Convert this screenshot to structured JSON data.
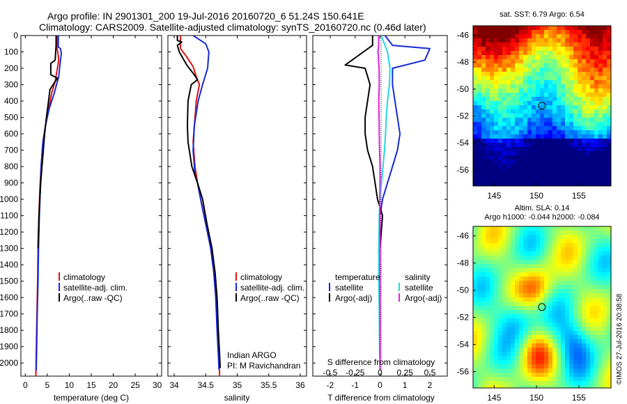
{
  "figure": {
    "title_line1": "Argo profile: IN 2901301_200 19-Jul-2016 20160720_6 51.24S 150.641E",
    "title_line2": "Climatology: CARS2009. Satellite-adjusted climatology: synTS_20160720.nc (0.46d later)",
    "side_stamp": "©IMOS 27-Jul-2016 20:38:58",
    "float_info_line1": "Indian ARGO",
    "float_info_line2": "PI: M Ravichandran"
  },
  "colors": {
    "climatology": "#e01010",
    "satellite": "#1428d8",
    "argo": "#000000",
    "salinity_satellite": "#20d8e0",
    "salinity_argo": "#e020e0"
  },
  "chart_data": [
    {
      "id": "temperature",
      "type": "line",
      "xlabel": "temperature (deg C)",
      "xlim": [
        -1,
        31
      ],
      "xticks": [
        0,
        5,
        10,
        15,
        20,
        25,
        30
      ],
      "xticklabels": [
        "0",
        "5",
        "10",
        "15",
        "20",
        "25",
        "30"
      ],
      "ylim": [
        2080,
        0
      ],
      "yticks": [
        0,
        100,
        200,
        300,
        400,
        500,
        600,
        700,
        800,
        900,
        1000,
        1100,
        1200,
        1300,
        1400,
        1500,
        1600,
        1700,
        1800,
        1900,
        2000
      ],
      "yticklabels": [
        "0",
        "100",
        "200",
        "300",
        "400",
        "500",
        "600",
        "700",
        "800",
        "900",
        "1000",
        "1100",
        "1200",
        "1300",
        "1400",
        "1500",
        "1600",
        "1700",
        "1800",
        "1900",
        "2000"
      ],
      "legend": [
        "climatology",
        "satellite-adj. clim.",
        "Argo(..raw -QC)"
      ],
      "series": [
        {
          "name": "climatology",
          "color_key": "climatology",
          "points": [
            [
              7.2,
              0
            ],
            [
              7.2,
              80
            ],
            [
              7.4,
              100
            ],
            [
              7.6,
              150
            ],
            [
              7.3,
              200
            ],
            [
              6.8,
              280
            ],
            [
              6.0,
              350
            ],
            [
              5.3,
              450
            ],
            [
              4.6,
              550
            ],
            [
              4.0,
              650
            ],
            [
              3.6,
              800
            ],
            [
              3.3,
              950
            ],
            [
              3.1,
              1100
            ],
            [
              2.9,
              1300
            ],
            [
              2.8,
              1500
            ],
            [
              2.65,
              1700
            ],
            [
              2.5,
              1900
            ],
            [
              2.4,
              2080
            ]
          ]
        },
        {
          "name": "satellite-adj. clim.",
          "color_key": "satellite",
          "points": [
            [
              7.5,
              0
            ],
            [
              7.5,
              70
            ],
            [
              8.0,
              80
            ],
            [
              8.2,
              110
            ],
            [
              8.0,
              150
            ],
            [
              7.6,
              250
            ],
            [
              6.6,
              350
            ],
            [
              5.4,
              450
            ],
            [
              4.6,
              550
            ],
            [
              4.0,
              650
            ],
            [
              3.6,
              800
            ],
            [
              3.4,
              950
            ],
            [
              3.2,
              1100
            ],
            [
              3.0,
              1300
            ],
            [
              2.9,
              1500
            ],
            [
              2.7,
              1700
            ],
            [
              2.6,
              1900
            ],
            [
              2.5,
              2030
            ],
            [
              2.5,
              2045
            ]
          ]
        },
        {
          "name": "Argo(..raw -QC)",
          "color_key": "argo",
          "points": [
            [
              7.0,
              0
            ],
            [
              7.0,
              60
            ],
            [
              6.8,
              150
            ],
            [
              5.8,
              170
            ],
            [
              5.8,
              240
            ],
            [
              7.3,
              260
            ],
            [
              5.6,
              330
            ],
            [
              5.2,
              420
            ],
            [
              4.8,
              500
            ],
            [
              4.4,
              600
            ],
            [
              4.1,
              700
            ],
            [
              3.8,
              800
            ],
            [
              3.5,
              900
            ],
            [
              3.3,
              1000
            ],
            [
              3.1,
              1100
            ],
            [
              2.9,
              1300
            ]
          ]
        }
      ]
    },
    {
      "id": "salinity",
      "type": "line",
      "xlabel": "salinity",
      "xlim": [
        33.9,
        36.1
      ],
      "xticks": [
        34,
        34.5,
        35,
        35.5,
        36
      ],
      "xticklabels": [
        "34",
        "34.5",
        "35",
        "35.5",
        "36"
      ],
      "ylim": [
        2080,
        0
      ],
      "yticks": [
        0,
        100,
        200,
        300,
        400,
        500,
        600,
        700,
        800,
        900,
        1000,
        1100,
        1200,
        1300,
        1400,
        1500,
        1600,
        1700,
        1800,
        1900,
        2000
      ],
      "legend": [
        "climatology",
        "satellite-adj. clim.",
        "Argo(..raw -QC)"
      ],
      "series": [
        {
          "name": "climatology",
          "color_key": "climatology",
          "points": [
            [
              34.1,
              0
            ],
            [
              34.1,
              80
            ],
            [
              34.18,
              120
            ],
            [
              34.3,
              190
            ],
            [
              34.35,
              250
            ],
            [
              34.4,
              300
            ],
            [
              34.35,
              400
            ],
            [
              34.32,
              550
            ],
            [
              34.3,
              650
            ],
            [
              34.33,
              800
            ],
            [
              34.37,
              900
            ],
            [
              34.42,
              1000
            ],
            [
              34.5,
              1150
            ],
            [
              34.58,
              1300
            ],
            [
              34.63,
              1450
            ],
            [
              34.66,
              1600
            ],
            [
              34.69,
              1800
            ],
            [
              34.71,
              1950
            ],
            [
              34.72,
              2080
            ]
          ]
        },
        {
          "name": "satellite-adj. clim.",
          "color_key": "satellite",
          "points": [
            [
              34.3,
              0
            ],
            [
              34.5,
              50
            ],
            [
              34.55,
              100
            ],
            [
              34.53,
              200
            ],
            [
              34.45,
              300
            ],
            [
              34.38,
              400
            ],
            [
              34.32,
              550
            ],
            [
              34.3,
              700
            ],
            [
              34.33,
              850
            ],
            [
              34.37,
              900
            ],
            [
              34.42,
              1000
            ],
            [
              34.5,
              1150
            ],
            [
              34.58,
              1300
            ],
            [
              34.63,
              1450
            ],
            [
              34.66,
              1600
            ],
            [
              34.68,
              1800
            ],
            [
              34.7,
              1950
            ],
            [
              34.71,
              2040
            ]
          ]
        },
        {
          "name": "Argo(..raw -QC)",
          "color_key": "argo",
          "points": [
            [
              34.05,
              0
            ],
            [
              34.05,
              30
            ],
            [
              34.12,
              40
            ],
            [
              34.05,
              60
            ],
            [
              34.08,
              100
            ],
            [
              34.2,
              180
            ],
            [
              34.3,
              230
            ],
            [
              34.37,
              270
            ],
            [
              34.27,
              300
            ],
            [
              34.22,
              400
            ],
            [
              34.21,
              550
            ],
            [
              34.22,
              650
            ],
            [
              34.28,
              800
            ],
            [
              34.37,
              900
            ],
            [
              34.45,
              1000
            ],
            [
              34.52,
              1150
            ],
            [
              34.6,
              1300
            ],
            [
              34.65,
              1450
            ],
            [
              34.68,
              1600
            ],
            [
              34.7,
              1800
            ],
            [
              34.72,
              1950
            ],
            [
              34.73,
              2030
            ]
          ]
        }
      ]
    },
    {
      "id": "difference",
      "type": "line",
      "xlabel": "T difference from climatology",
      "xlabel_top": "S difference from climatology",
      "xlim": [
        -2.7,
        2.7
      ],
      "xticks": [
        -2,
        -1,
        0,
        1,
        2
      ],
      "xticklabels": [
        "-2",
        "-1",
        "0",
        "1",
        "2"
      ],
      "sticks": [
        "-0.5",
        "-0.25",
        "0",
        "0.25",
        "0.5"
      ],
      "ylim": [
        2080,
        0
      ],
      "yticks": [
        0,
        100,
        200,
        300,
        400,
        500,
        600,
        700,
        800,
        900,
        1000,
        1100,
        1200,
        1300,
        1400,
        1500,
        1600,
        1700,
        1800,
        1900,
        2000
      ],
      "legend_left_title": "temperature",
      "legend_left": [
        "satellite",
        "Argo(-adj)"
      ],
      "legend_right_title": "salinity",
      "legend_right": [
        "satellite",
        "Argo(-adj)"
      ],
      "series": [
        {
          "name": "temperature satellite",
          "color_key": "satellite",
          "points": [
            [
              0.2,
              0
            ],
            [
              0.5,
              60
            ],
            [
              2.0,
              80
            ],
            [
              1.8,
              150
            ],
            [
              0.5,
              200
            ],
            [
              0.5,
              300
            ],
            [
              0.6,
              400
            ],
            [
              0.7,
              500
            ],
            [
              0.8,
              600
            ],
            [
              0.7,
              700
            ],
            [
              0.5,
              800
            ],
            [
              0.3,
              900
            ],
            [
              0.1,
              1000
            ],
            [
              0.0,
              1100
            ],
            [
              0.0,
              1300
            ],
            [
              0.0,
              1600
            ],
            [
              0.0,
              2040
            ]
          ]
        },
        {
          "name": "temperature Argo(-adj)",
          "color_key": "argo",
          "points": [
            [
              -0.3,
              0
            ],
            [
              -0.3,
              60
            ],
            [
              -1.4,
              180
            ],
            [
              -0.6,
              200
            ],
            [
              -0.4,
              300
            ],
            [
              -0.5,
              400
            ],
            [
              -0.6,
              500
            ],
            [
              -0.6,
              600
            ],
            [
              -0.5,
              700
            ],
            [
              -0.3,
              800
            ],
            [
              -0.2,
              900
            ],
            [
              -0.1,
              1000
            ],
            [
              0.1,
              1100
            ],
            [
              0.0,
              1300
            ],
            [
              0.0,
              1600
            ],
            [
              0.0,
              2040
            ]
          ]
        },
        {
          "name": "salinity satellite",
          "color_key": "salinity_satellite",
          "points": [
            [
              0.05,
              0
            ],
            [
              0.2,
              60
            ],
            [
              0.3,
              100
            ],
            [
              0.4,
              200
            ],
            [
              0.38,
              300
            ],
            [
              0.3,
              400
            ],
            [
              0.25,
              500
            ],
            [
              0.22,
              600
            ],
            [
              0.18,
              700
            ],
            [
              0.12,
              800
            ],
            [
              0.06,
              900
            ],
            [
              0.0,
              1000
            ],
            [
              -0.03,
              1100
            ],
            [
              -0.05,
              1300
            ],
            [
              -0.05,
              1500
            ],
            [
              -0.03,
              1700
            ],
            [
              -0.02,
              1900
            ],
            [
              0.0,
              2040
            ]
          ]
        },
        {
          "name": "salinity Argo(-adj)",
          "color_key": "salinity_argo",
          "points": [
            [
              -0.06,
              0
            ],
            [
              -0.05,
              50
            ],
            [
              -0.08,
              100
            ],
            [
              -0.04,
              200
            ],
            [
              -0.03,
              300
            ],
            [
              -0.05,
              400
            ],
            [
              -0.04,
              500
            ],
            [
              -0.03,
              600
            ],
            [
              -0.02,
              700
            ],
            [
              0.0,
              800
            ],
            [
              0.0,
              900
            ],
            [
              -0.01,
              1000
            ],
            [
              0.0,
              1100
            ],
            [
              0.0,
              1300
            ],
            [
              0.0,
              1500
            ],
            [
              0.0,
              1700
            ],
            [
              0.0,
              1900
            ],
            [
              0.0,
              2040
            ]
          ]
        }
      ]
    },
    {
      "id": "sst_map",
      "type": "heatmap",
      "title": "sat. SST: 6.79  Argo: 6.54",
      "xlim": [
        142.5,
        158.8
      ],
      "ylim": [
        -57.2,
        -45.3
      ],
      "xticks": [
        145,
        150,
        155
      ],
      "yticks": [
        -46,
        -48,
        -50,
        -52,
        -54,
        -56
      ],
      "marker": [
        150.641,
        -51.24
      ]
    },
    {
      "id": "sla_map",
      "type": "heatmap",
      "title_line1": "Altim. SLA: 0.14",
      "title_line2": "Argo h1000: -0.044  h2000: -0.084",
      "xlim": [
        142.5,
        158.8
      ],
      "ylim": [
        -57.2,
        -45.3
      ],
      "xticks": [
        145,
        150,
        155
      ],
      "yticks": [
        -46,
        -48,
        -50,
        -52,
        -54,
        -56
      ],
      "marker": [
        150.641,
        -51.24
      ]
    }
  ]
}
